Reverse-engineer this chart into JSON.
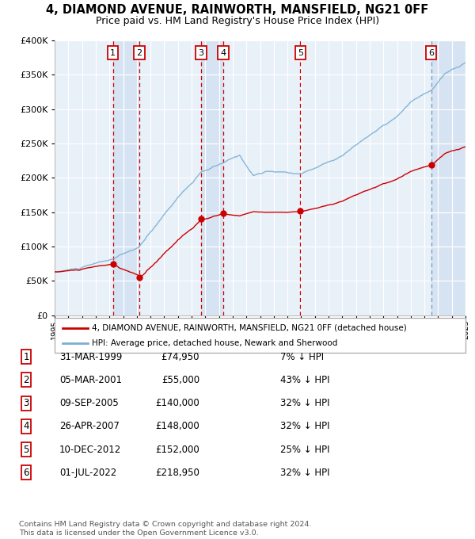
{
  "title": "4, DIAMOND AVENUE, RAINWORTH, MANSFIELD, NG21 0FF",
  "subtitle": "Price paid vs. HM Land Registry's House Price Index (HPI)",
  "property_label": "4, DIAMOND AVENUE, RAINWORTH, MANSFIELD, NG21 0FF (detached house)",
  "hpi_label": "HPI: Average price, detached house, Newark and Sherwood",
  "footer": "Contains HM Land Registry data © Crown copyright and database right 2024.\nThis data is licensed under the Open Government Licence v3.0.",
  "sales": [
    {
      "num": 1,
      "date": "31-MAR-1999",
      "price": 74950,
      "year": 1999.25,
      "pct": "7% ↓ HPI"
    },
    {
      "num": 2,
      "date": "05-MAR-2001",
      "price": 55000,
      "year": 2001.18,
      "pct": "43% ↓ HPI"
    },
    {
      "num": 3,
      "date": "09-SEP-2005",
      "price": 140000,
      "year": 2005.69,
      "pct": "32% ↓ HPI"
    },
    {
      "num": 4,
      "date": "26-APR-2007",
      "price": 148000,
      "year": 2007.32,
      "pct": "32% ↓ HPI"
    },
    {
      "num": 5,
      "date": "10-DEC-2012",
      "price": 152000,
      "year": 2012.94,
      "pct": "25% ↓ HPI"
    },
    {
      "num": 6,
      "date": "01-JUL-2022",
      "price": 218950,
      "year": 2022.5,
      "pct": "32% ↓ HPI"
    }
  ],
  "red_color": "#cc0000",
  "blue_color": "#7ab0d4",
  "plot_bg": "#e8f0f8",
  "xlim": [
    1995,
    2025
  ],
  "ylim": [
    0,
    400000
  ],
  "yticks": [
    0,
    50000,
    100000,
    150000,
    200000,
    250000,
    300000,
    350000,
    400000
  ],
  "table_data": [
    [
      "1",
      "31-MAR-1999",
      "£74,950",
      "7% ↓ HPI"
    ],
    [
      "2",
      "05-MAR-2001",
      "£55,000",
      "43% ↓ HPI"
    ],
    [
      "3",
      "09-SEP-2005",
      "£140,000",
      "32% ↓ HPI"
    ],
    [
      "4",
      "26-APR-2007",
      "£148,000",
      "32% ↓ HPI"
    ],
    [
      "5",
      "10-DEC-2012",
      "£152,000",
      "25% ↓ HPI"
    ],
    [
      "6",
      "01-JUL-2022",
      "£218,950",
      "32% ↓ HPI"
    ]
  ]
}
